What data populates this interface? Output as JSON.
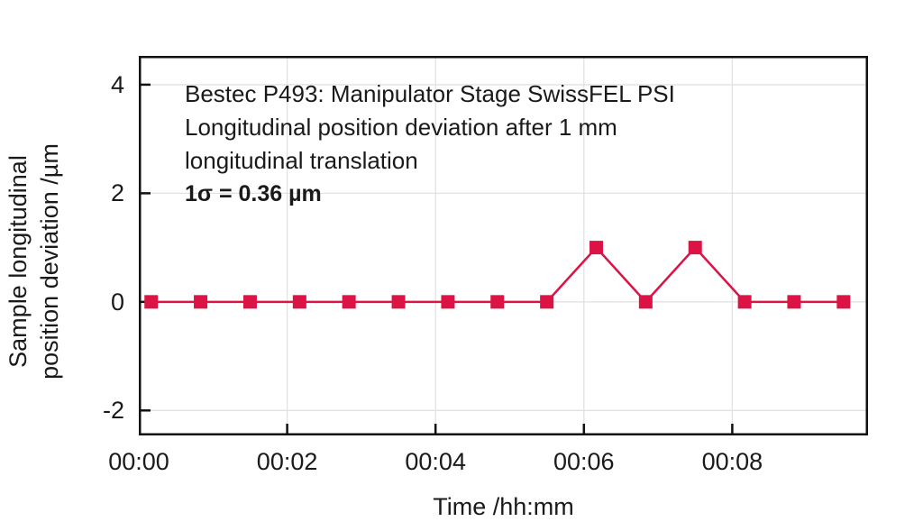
{
  "title_block": {
    "line1": "Bestec P493: Manipulator Stage SwissFEL PSI",
    "line2": "Longitudinal position deviation after 1 mm",
    "line3": "longitudinal translation",
    "sigma_line": "1σ = 0.36 µm"
  },
  "axes": {
    "xlabel": "Time /hh:mm",
    "ylabel_line1": "Sample longitudinal",
    "ylabel_line2": "position deviation /µm"
  },
  "colors": {
    "series": "#DC1446",
    "grid": "#E2E2E2",
    "axis": "#111111",
    "text": "#1A1A1A"
  },
  "chart_data": {
    "type": "line",
    "title": "Bestec P493: Manipulator Stage SwissFEL PSI — Longitudinal position deviation after 1 mm longitudinal translation",
    "annotation": "1σ = 0.36 µm",
    "xlabel": "Time /hh:mm",
    "ylabel": "Sample longitudinal position deviation /µm",
    "marker": "square",
    "marker_size": 15,
    "line_width": 2.5,
    "grid": true,
    "legend": "none",
    "xlim": [
      0,
      9.83
    ],
    "ylim": [
      -2.46,
      4.53
    ],
    "x_minutes": [
      0.167,
      0.833,
      1.5,
      2.167,
      2.833,
      3.5,
      4.167,
      4.833,
      5.5,
      6.167,
      6.833,
      7.5,
      8.167,
      8.833,
      9.5
    ],
    "y_um": [
      0,
      0,
      0,
      0,
      0,
      0,
      0,
      0,
      0,
      1,
      0,
      1,
      0,
      0,
      0
    ],
    "x_ticks": [
      {
        "t": 0,
        "label": "00:00"
      },
      {
        "t": 2,
        "label": "00:02"
      },
      {
        "t": 4,
        "label": "00:04"
      },
      {
        "t": 6,
        "label": "00:06"
      },
      {
        "t": 8,
        "label": "00:08"
      }
    ],
    "y_ticks": [
      {
        "v": 4,
        "label": "4"
      },
      {
        "v": 2,
        "label": "2"
      },
      {
        "v": 0,
        "label": "0"
      },
      {
        "v": -2,
        "label": "-2"
      }
    ]
  }
}
